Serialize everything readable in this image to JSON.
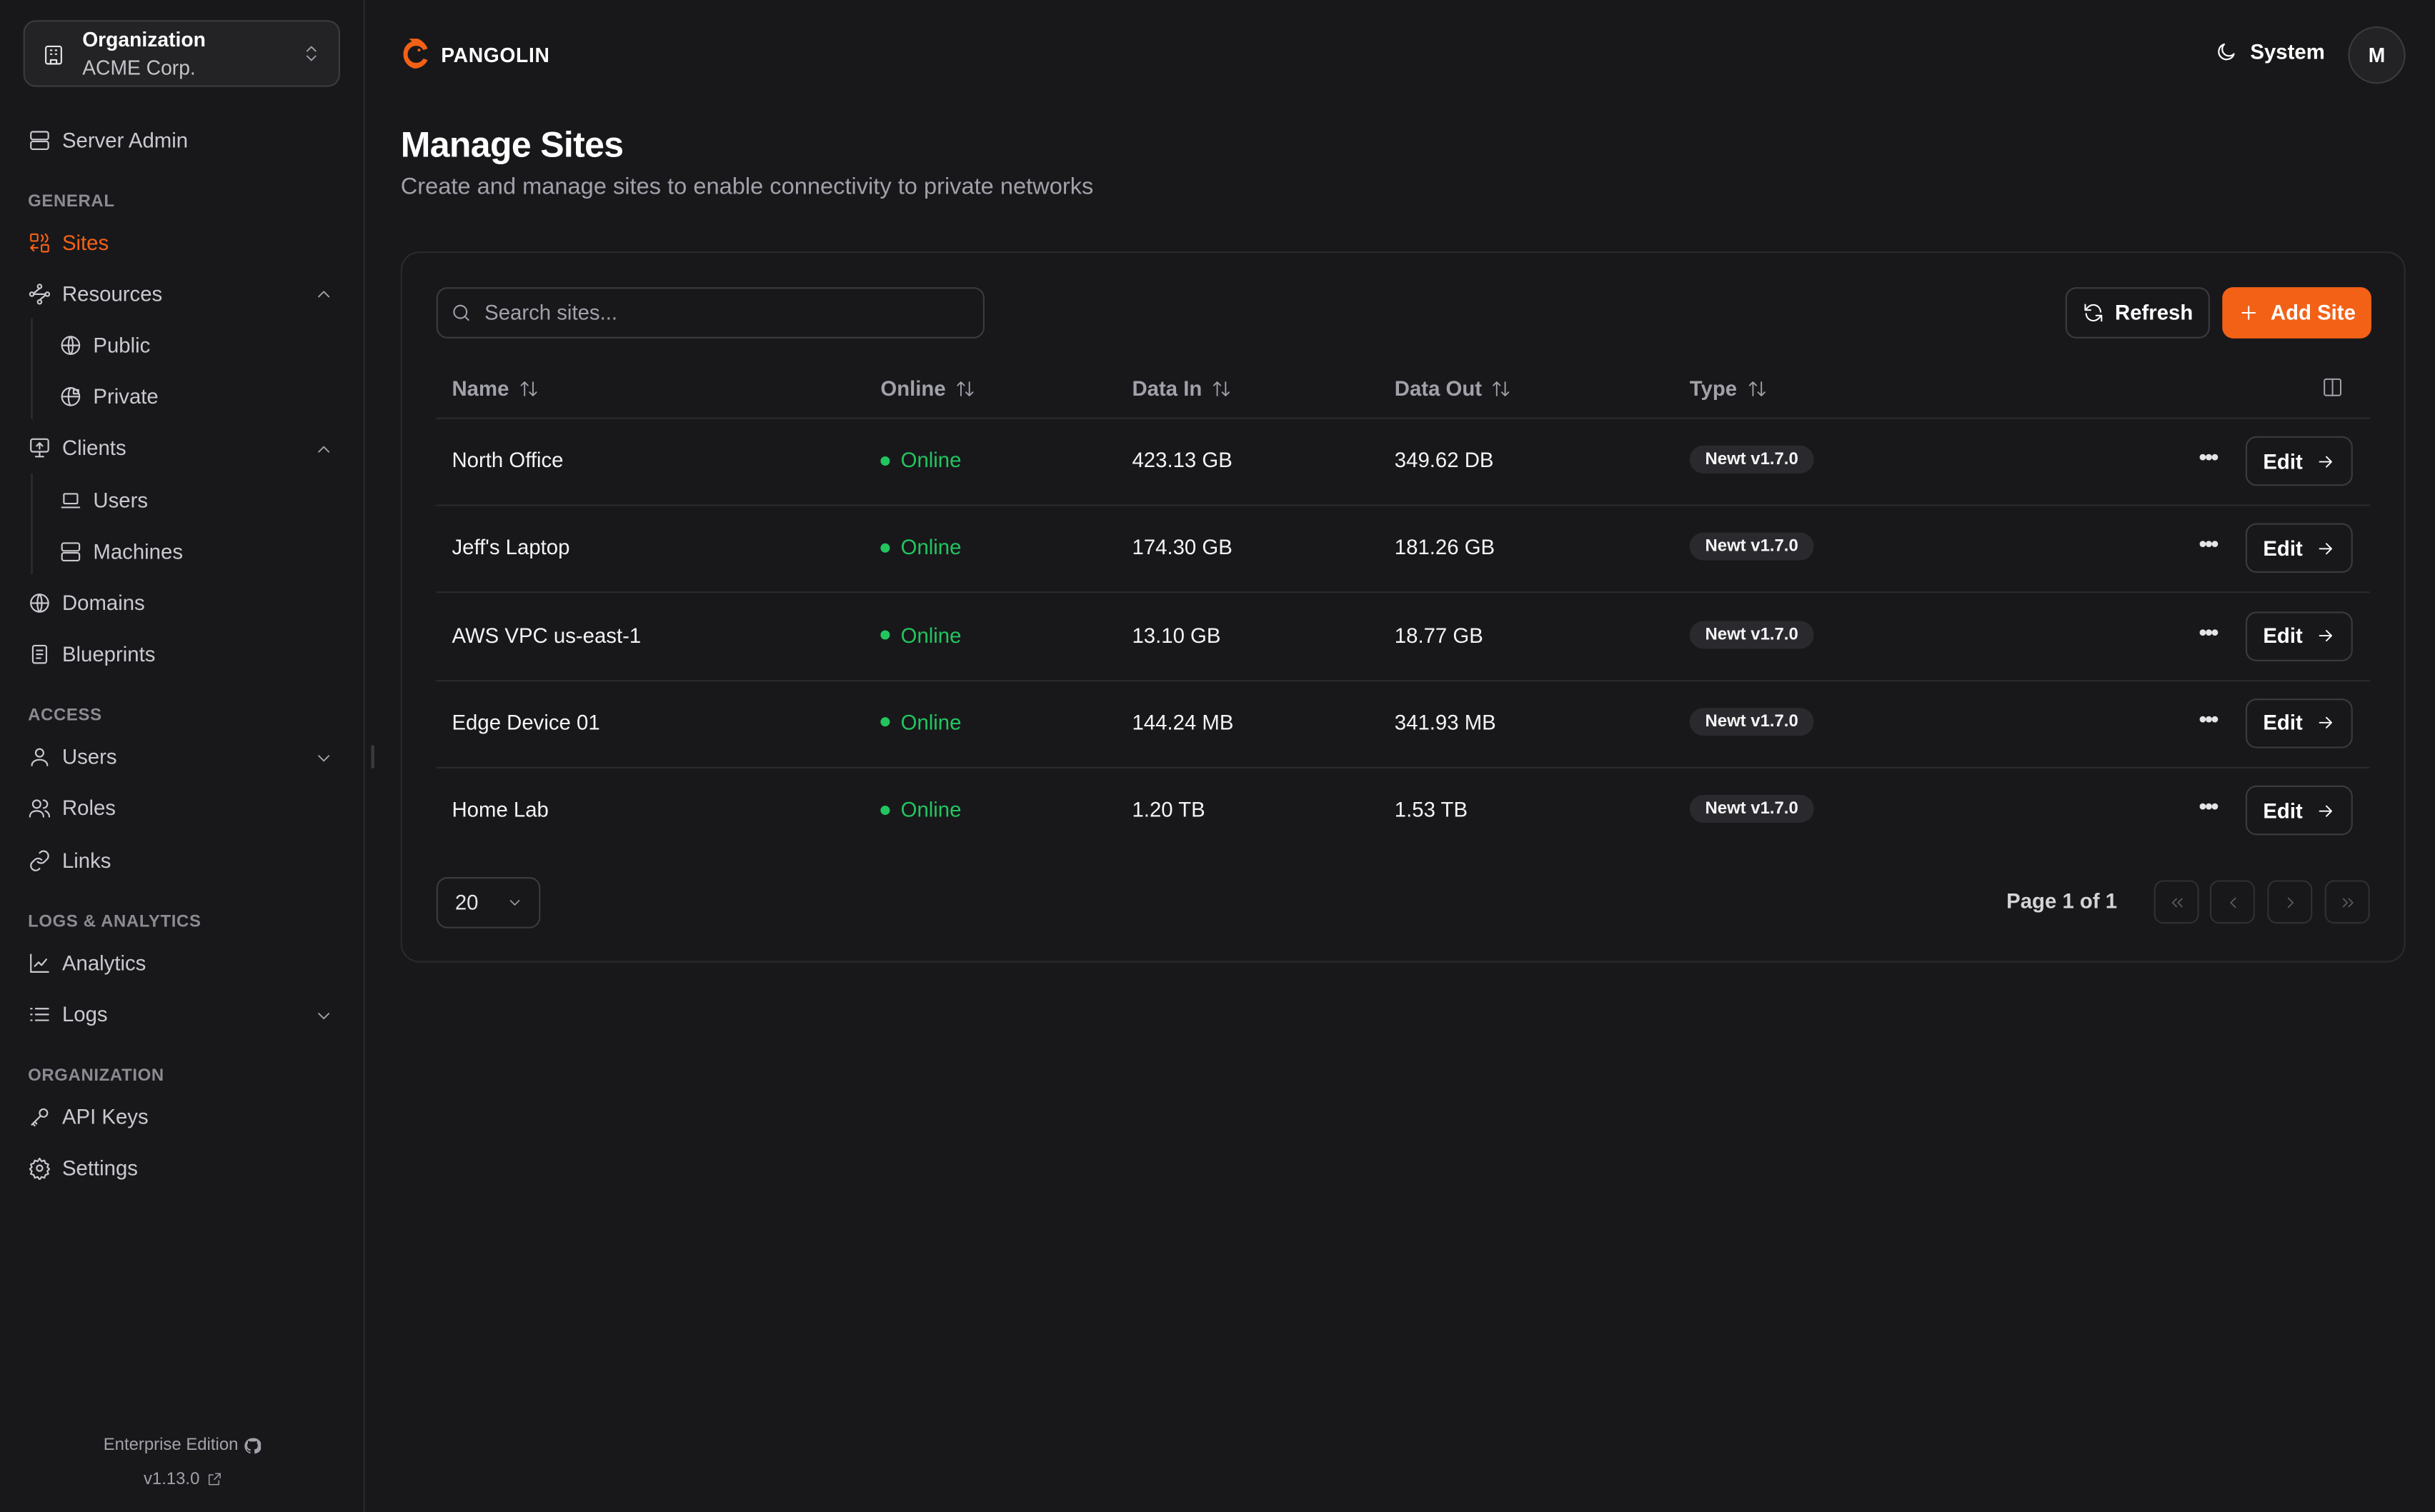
{
  "org": {
    "label": "Organization",
    "name": "ACME Corp."
  },
  "sidebar": {
    "server_admin": "Server Admin",
    "sections": {
      "general": "GENERAL",
      "access": "ACCESS",
      "logs": "LOGS & ANALYTICS",
      "organization": "ORGANIZATION"
    },
    "items": {
      "sites": "Sites",
      "resources": "Resources",
      "public": "Public",
      "private": "Private",
      "clients": "Clients",
      "users_client": "Users",
      "machines": "Machines",
      "domains": "Domains",
      "blueprints": "Blueprints",
      "users": "Users",
      "roles": "Roles",
      "links": "Links",
      "analytics": "Analytics",
      "logs": "Logs",
      "api_keys": "API Keys",
      "settings": "Settings"
    },
    "active": "sites",
    "footer": {
      "edition": "Enterprise Edition",
      "version": "v1.13.0"
    }
  },
  "header": {
    "brand": "PANGOLIN",
    "theme": "System",
    "avatar": "M"
  },
  "page": {
    "title": "Manage Sites",
    "subtitle": "Create and manage sites to enable connectivity to private networks"
  },
  "toolbar": {
    "search_placeholder": "Search sites...",
    "refresh": "Refresh",
    "add_site": "Add Site"
  },
  "table": {
    "columns": [
      "Name",
      "Online",
      "Data In",
      "Data Out",
      "Type"
    ],
    "rows": [
      {
        "name": "North Office",
        "online": "Online",
        "data_in": "423.13 GB",
        "data_out": "349.62 DB",
        "type": "Newt v1.7.0",
        "action": "Edit"
      },
      {
        "name": "Jeff's Laptop",
        "online": "Online",
        "data_in": "174.30 GB",
        "data_out": "181.26 GB",
        "type": "Newt v1.7.0",
        "action": "Edit"
      },
      {
        "name": "AWS VPC us-east-1",
        "online": "Online",
        "data_in": "13.10 GB",
        "data_out": "18.77 GB",
        "type": "Newt v1.7.0",
        "action": "Edit"
      },
      {
        "name": "Edge Device 01",
        "online": "Online",
        "data_in": "144.24 MB",
        "data_out": "341.93 MB",
        "type": "Newt v1.7.0",
        "action": "Edit"
      },
      {
        "name": "Home Lab",
        "online": "Online",
        "data_in": "1.20 TB",
        "data_out": "1.53 TB",
        "type": "Newt v1.7.0",
        "action": "Edit"
      }
    ]
  },
  "pagination": {
    "page_size": "20",
    "page_info": "Page 1 of 1"
  },
  "colors": {
    "accent": "#f36117",
    "online": "#22c55e",
    "background": "#18181b"
  }
}
